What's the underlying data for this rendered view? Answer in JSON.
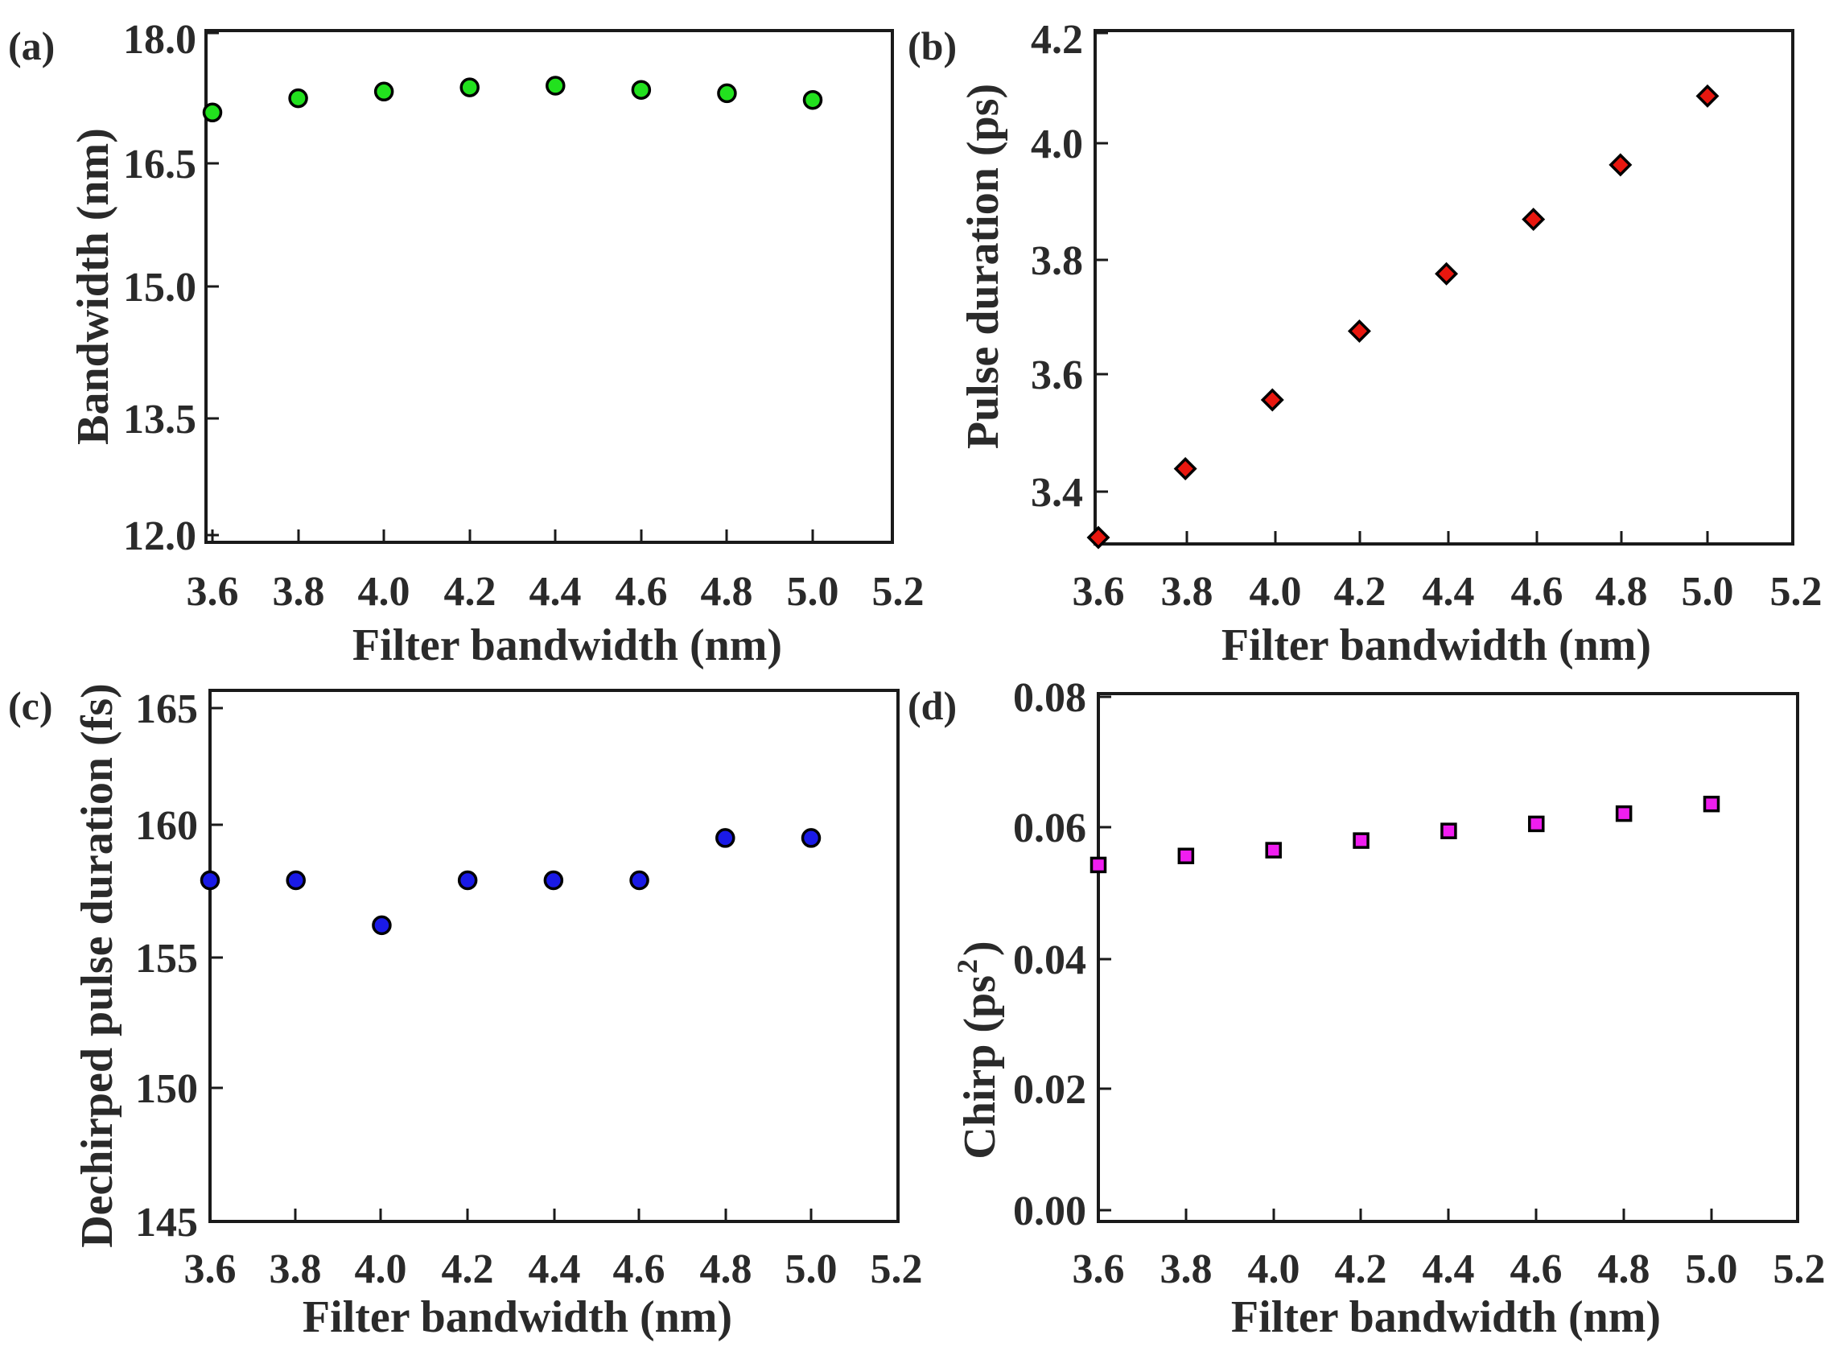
{
  "chart_data": [
    {
      "panel_label": "(a)",
      "type": "scatter",
      "xlabel": "Filter bandwidth (nm)",
      "ylabel": "Bandwidth (nm)",
      "x_tick_labels": [
        "3.6",
        "3.8",
        "4.0",
        "4.2",
        "4.4",
        "4.6",
        "4.8",
        "5.0",
        "5.2"
      ],
      "y_tick_labels": [
        "12.0",
        "13.5",
        "15.0",
        "16.5",
        "18.0"
      ],
      "xlim": [
        3.6,
        5.2
      ],
      "ylim": [
        12.0,
        18.0
      ],
      "marker": "circle",
      "color": "#22e11e",
      "series": [
        {
          "name": "Bandwidth",
          "x": [
            3.6,
            3.8,
            4.0,
            4.2,
            4.4,
            4.6,
            4.8,
            5.0
          ],
          "y": [
            17.05,
            17.22,
            17.3,
            17.35,
            17.37,
            17.32,
            17.28,
            17.2
          ]
        }
      ]
    },
    {
      "panel_label": "(b)",
      "type": "scatter",
      "xlabel": "Filter bandwidth (nm)",
      "ylabel": "Pulse duration (ps)",
      "x_tick_labels": [
        "3.6",
        "3.8",
        "4.0",
        "4.2",
        "4.4",
        "4.6",
        "4.8",
        "5.0",
        "5.2"
      ],
      "y_tick_labels": [
        "3.4",
        "3.6",
        "3.8",
        "4.0",
        "4.2"
      ],
      "xlim": [
        3.6,
        5.2
      ],
      "ylim": [
        3.31,
        4.2
      ],
      "marker": "diamond",
      "color": "#e8170f",
      "series": [
        {
          "name": "Pulse duration",
          "x": [
            3.6,
            3.8,
            4.0,
            4.2,
            4.4,
            4.6,
            4.8,
            5.0
          ],
          "y": [
            3.32,
            3.44,
            3.56,
            3.68,
            3.78,
            3.875,
            3.97,
            4.09
          ]
        }
      ]
    },
    {
      "panel_label": "(c)",
      "type": "scatter",
      "xlabel": "Filter bandwidth (nm)",
      "ylabel": "Dechirped pulse duration (fs)",
      "x_tick_labels": [
        "3.6",
        "3.8",
        "4.0",
        "4.2",
        "4.4",
        "4.6",
        "4.8",
        "5.0",
        "5.2"
      ],
      "y_tick_labels": [
        "145",
        "150",
        "155",
        "160",
        "165"
      ],
      "xlim": [
        3.6,
        5.2
      ],
      "ylim": [
        145,
        165
      ],
      "marker": "circle",
      "color": "#1a1ae6",
      "series": [
        {
          "name": "Dechirped pulse duration",
          "x": [
            3.6,
            3.8,
            4.0,
            4.2,
            4.4,
            4.6,
            4.8,
            5.0
          ],
          "y": [
            157.9,
            157.9,
            156.2,
            157.9,
            157.9,
            157.9,
            159.5,
            159.5
          ]
        }
      ]
    },
    {
      "panel_label": "(d)",
      "type": "scatter",
      "xlabel": "Filter bandwidth (nm)",
      "ylabel": "Chirp (ps",
      "ylabel_superscript": "2",
      "ylabel_suffix": ")",
      "x_tick_labels": [
        "3.6",
        "3.8",
        "4.0",
        "4.2",
        "4.4",
        "4.6",
        "4.8",
        "5.0",
        "5.2"
      ],
      "y_tick_labels": [
        "0.00",
        "0.02",
        "0.04",
        "0.06",
        "0.08"
      ],
      "xlim": [
        3.6,
        5.2
      ],
      "ylim": [
        0.0,
        0.08
      ],
      "marker": "square",
      "color": "#f01ef0",
      "series": [
        {
          "name": "Chirp",
          "x": [
            3.6,
            3.8,
            4.0,
            4.2,
            4.4,
            4.6,
            4.8,
            5.0
          ],
          "y": [
            0.0538,
            0.0552,
            0.0561,
            0.0576,
            0.0591,
            0.0602,
            0.0618,
            0.0633
          ]
        }
      ]
    }
  ]
}
